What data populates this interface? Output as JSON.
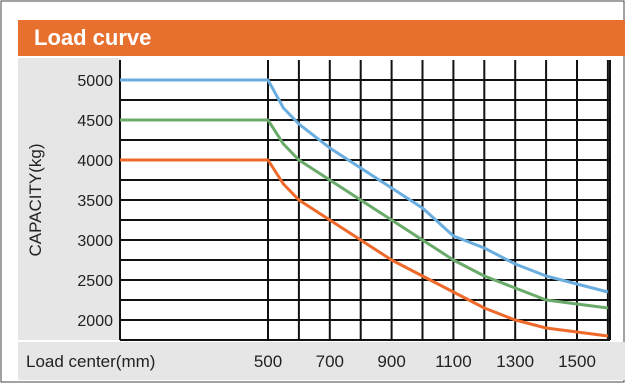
{
  "title": "Load curve",
  "colors": {
    "header_bg": "#e8702e",
    "header_text": "#ffffff",
    "panel_bg": "#e6e6e6",
    "grid": "#111111",
    "blue": "#6aaee0",
    "green": "#6aaa6a",
    "orange": "#ee6a2a"
  },
  "chart_data": {
    "type": "line",
    "title": "Load curve",
    "ylabel": "CAPACITY(kg)",
    "xlabel": "Load center(mm)",
    "yticks": [
      5000,
      4500,
      4000,
      3500,
      3000,
      2500,
      2000
    ],
    "xticks": [
      500,
      700,
      900,
      1100,
      1300,
      1500
    ],
    "xlim": [
      0,
      1600
    ],
    "ylim": [
      1800,
      5000
    ],
    "grid": true,
    "series": [
      {
        "color": "#6aaee0",
        "x": [
          0,
          500,
          550,
          600,
          700,
          800,
          900,
          1000,
          1100,
          1200,
          1300,
          1400,
          1500,
          1600
        ],
        "y": [
          5000,
          5000,
          4650,
          4450,
          4150,
          3900,
          3650,
          3400,
          3050,
          2900,
          2700,
          2550,
          2450,
          2350
        ]
      },
      {
        "color": "#6aaa6a",
        "x": [
          0,
          500,
          550,
          600,
          700,
          800,
          900,
          1000,
          1100,
          1200,
          1300,
          1400,
          1500,
          1600
        ],
        "y": [
          4500,
          4500,
          4200,
          4000,
          3750,
          3500,
          3250,
          3000,
          2750,
          2550,
          2400,
          2250,
          2200,
          2150
        ]
      },
      {
        "color": "#ee6a2a",
        "x": [
          0,
          500,
          550,
          600,
          700,
          800,
          900,
          1000,
          1100,
          1200,
          1300,
          1400,
          1500,
          1600
        ],
        "y": [
          4000,
          4000,
          3700,
          3500,
          3250,
          3000,
          2750,
          2550,
          2350,
          2150,
          2000,
          1900,
          1850,
          1800
        ]
      }
    ]
  }
}
